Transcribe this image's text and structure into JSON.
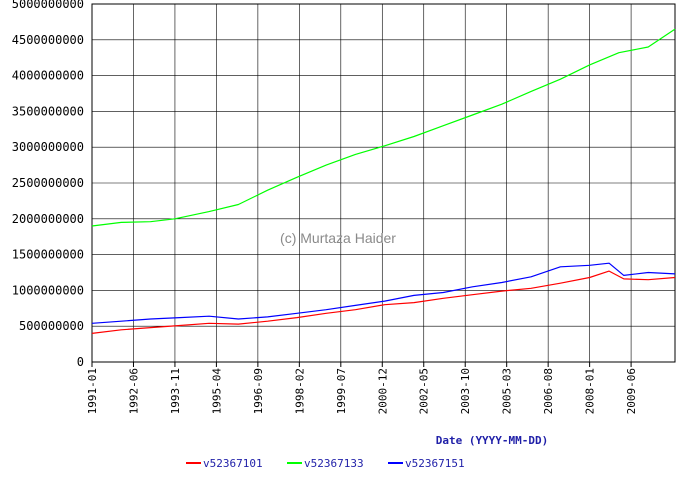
{
  "watermark": "(c) Murtaza Haider",
  "chart_data": {
    "type": "line",
    "xlabel": "Date (YYYY-MM-DD)",
    "ylabel": "",
    "title": "",
    "x_range": [
      "1991-01",
      "2010-12"
    ],
    "ylim": [
      0,
      5000000000
    ],
    "yticks": [
      0,
      500000000,
      1000000000,
      1500000000,
      2000000000,
      2500000000,
      3000000000,
      3500000000,
      4000000000,
      4500000000,
      5000000000
    ],
    "ytick_labels": [
      "0",
      "500000000",
      "1000000000",
      "1500000000",
      "2000000000",
      "2500000000",
      "3000000000",
      "3500000000",
      "4000000000",
      "4500000000",
      "5000000000"
    ],
    "xtick_labels": [
      "1991-01",
      "1992-06",
      "1993-11",
      "1995-04",
      "1996-09",
      "1998-02",
      "1999-07",
      "2000-12",
      "2002-05",
      "2003-10",
      "2005-03",
      "2006-08",
      "2008-01",
      "2009-06"
    ],
    "grid": true,
    "legend_position": "bottom",
    "series": [
      {
        "name": "v52367101",
        "color": "#ff0000",
        "x": [
          "1991-01",
          "1992-01",
          "1993-01",
          "1994-01",
          "1995-01",
          "1996-01",
          "1997-01",
          "1998-01",
          "1999-01",
          "2000-01",
          "2001-01",
          "2002-01",
          "2003-01",
          "2004-01",
          "2005-01",
          "2006-01",
          "2007-01",
          "2008-01",
          "2008-09",
          "2009-03",
          "2010-01",
          "2010-12"
        ],
        "values": [
          400000000,
          450000000,
          480000000,
          510000000,
          540000000,
          530000000,
          570000000,
          620000000,
          680000000,
          730000000,
          800000000,
          830000000,
          890000000,
          940000000,
          990000000,
          1030000000,
          1100000000,
          1180000000,
          1270000000,
          1160000000,
          1150000000,
          1180000000
        ]
      },
      {
        "name": "v52367133",
        "color": "#00ff00",
        "x": [
          "1991-01",
          "1992-01",
          "1993-01",
          "1993-11",
          "1995-01",
          "1996-01",
          "1997-01",
          "1998-01",
          "1999-01",
          "2000-01",
          "2001-01",
          "2002-01",
          "2003-01",
          "2004-01",
          "2005-01",
          "2006-01",
          "2007-01",
          "2008-01",
          "2009-01",
          "2010-01",
          "2010-12"
        ],
        "values": [
          1900000000,
          1950000000,
          1960000000,
          2000000000,
          2100000000,
          2200000000,
          2400000000,
          2580000000,
          2750000000,
          2900000000,
          3020000000,
          3150000000,
          3300000000,
          3450000000,
          3600000000,
          3780000000,
          3950000000,
          4150000000,
          4320000000,
          4400000000,
          4650000000
        ]
      },
      {
        "name": "v52367151",
        "color": "#0000ff",
        "x": [
          "1991-01",
          "1992-01",
          "1993-01",
          "1994-01",
          "1995-01",
          "1996-01",
          "1997-01",
          "1998-01",
          "1999-01",
          "2000-01",
          "2001-01",
          "2002-01",
          "2003-01",
          "2004-01",
          "2005-01",
          "2006-01",
          "2007-01",
          "2008-01",
          "2008-09",
          "2009-03",
          "2010-01",
          "2010-12"
        ],
        "values": [
          540000000,
          570000000,
          600000000,
          620000000,
          640000000,
          600000000,
          630000000,
          680000000,
          730000000,
          790000000,
          850000000,
          930000000,
          970000000,
          1050000000,
          1110000000,
          1190000000,
          1330000000,
          1350000000,
          1380000000,
          1210000000,
          1250000000,
          1230000000
        ]
      }
    ]
  }
}
